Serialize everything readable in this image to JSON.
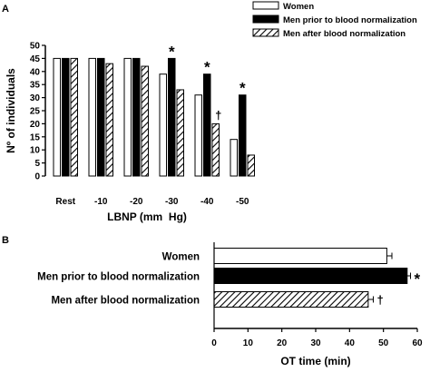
{
  "chart_data": [
    {
      "panel": "A",
      "type": "bar",
      "xlabel": "LBNP (mm  Hg)",
      "ylabel": "Nº of individuals",
      "ylim": [
        0,
        50
      ],
      "yticks": [
        0,
        5,
        10,
        15,
        20,
        25,
        30,
        35,
        40,
        45,
        50
      ],
      "categories": [
        "Rest",
        "-10",
        "-20",
        "-30",
        "-40",
        "-50"
      ],
      "legend_position": "top-right",
      "series": [
        {
          "name": "Women",
          "fill": "white",
          "values": [
            45,
            45,
            45,
            39,
            31,
            14
          ]
        },
        {
          "name": "Men prior to blood normalization",
          "fill": "black",
          "values": [
            45,
            45,
            45,
            45,
            39,
            31
          ]
        },
        {
          "name": "Men after blood normalization",
          "fill": "hatched",
          "values": [
            45,
            43,
            42,
            33,
            20,
            8
          ]
        }
      ],
      "annotations": [
        {
          "category": "-30",
          "series": 1,
          "text": "*"
        },
        {
          "category": "-40",
          "series": 1,
          "text": "*"
        },
        {
          "category": "-40",
          "series": 2,
          "text": "†"
        },
        {
          "category": "-50",
          "series": 1,
          "text": "*"
        }
      ]
    },
    {
      "panel": "B",
      "type": "bar",
      "orientation": "horizontal",
      "xlabel": "OT time (min)",
      "xlim": [
        0,
        60
      ],
      "xticks": [
        0,
        10,
        20,
        30,
        40,
        50,
        60
      ],
      "categories": [
        "Women",
        "Men prior to blood normalization",
        "Men after blood normalization"
      ],
      "fills": [
        "white",
        "black",
        "hatched"
      ],
      "values": [
        51,
        57,
        45.5
      ],
      "errors": [
        1.5,
        1,
        1.5
      ],
      "annotations": [
        "",
        "*",
        "†"
      ]
    }
  ]
}
